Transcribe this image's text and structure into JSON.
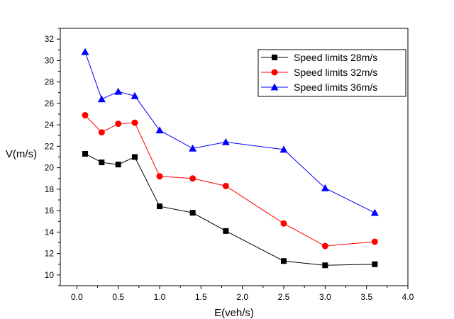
{
  "chart_data": {
    "type": "line",
    "xlabel": "E(veh/s)",
    "ylabel": "V(m/s)",
    "xlim": [
      -0.2,
      4.0
    ],
    "ylim": [
      9.0,
      33.0
    ],
    "xticks": [
      0.0,
      0.5,
      1.0,
      1.5,
      2.0,
      2.5,
      3.0,
      3.5,
      4.0
    ],
    "xtick_labels": [
      "0.0",
      "0.5",
      "1.0",
      "1.5",
      "2.0",
      "2.5",
      "3.0",
      "3.5",
      "4.0"
    ],
    "yticks": [
      10,
      12,
      14,
      16,
      18,
      20,
      22,
      24,
      26,
      28,
      30,
      32
    ],
    "ytick_labels": [
      "10",
      "12",
      "14",
      "16",
      "18",
      "20",
      "22",
      "24",
      "26",
      "28",
      "30",
      "32"
    ],
    "grid": false,
    "legend": "top-right",
    "x": [
      0.1,
      0.3,
      0.5,
      0.7,
      1.0,
      1.4,
      1.8,
      2.5,
      3.0,
      3.6
    ],
    "series": [
      {
        "name": "Speed limits 28m/s",
        "color": "#000000",
        "marker": "square",
        "values": [
          21.3,
          20.5,
          20.3,
          21.0,
          16.4,
          15.8,
          14.1,
          11.3,
          10.9,
          11.0
        ]
      },
      {
        "name": "Speed limits 32m/s",
        "color": "#ff0000",
        "marker": "circle",
        "values": [
          24.9,
          23.3,
          24.1,
          24.2,
          19.2,
          19.0,
          18.3,
          14.8,
          12.7,
          13.1
        ]
      },
      {
        "name": "Speed limits 36m/s",
        "color": "#0000ff",
        "marker": "triangle",
        "values": [
          30.8,
          26.4,
          27.1,
          26.7,
          23.5,
          21.8,
          22.4,
          21.7,
          18.1,
          15.8
        ]
      }
    ]
  }
}
